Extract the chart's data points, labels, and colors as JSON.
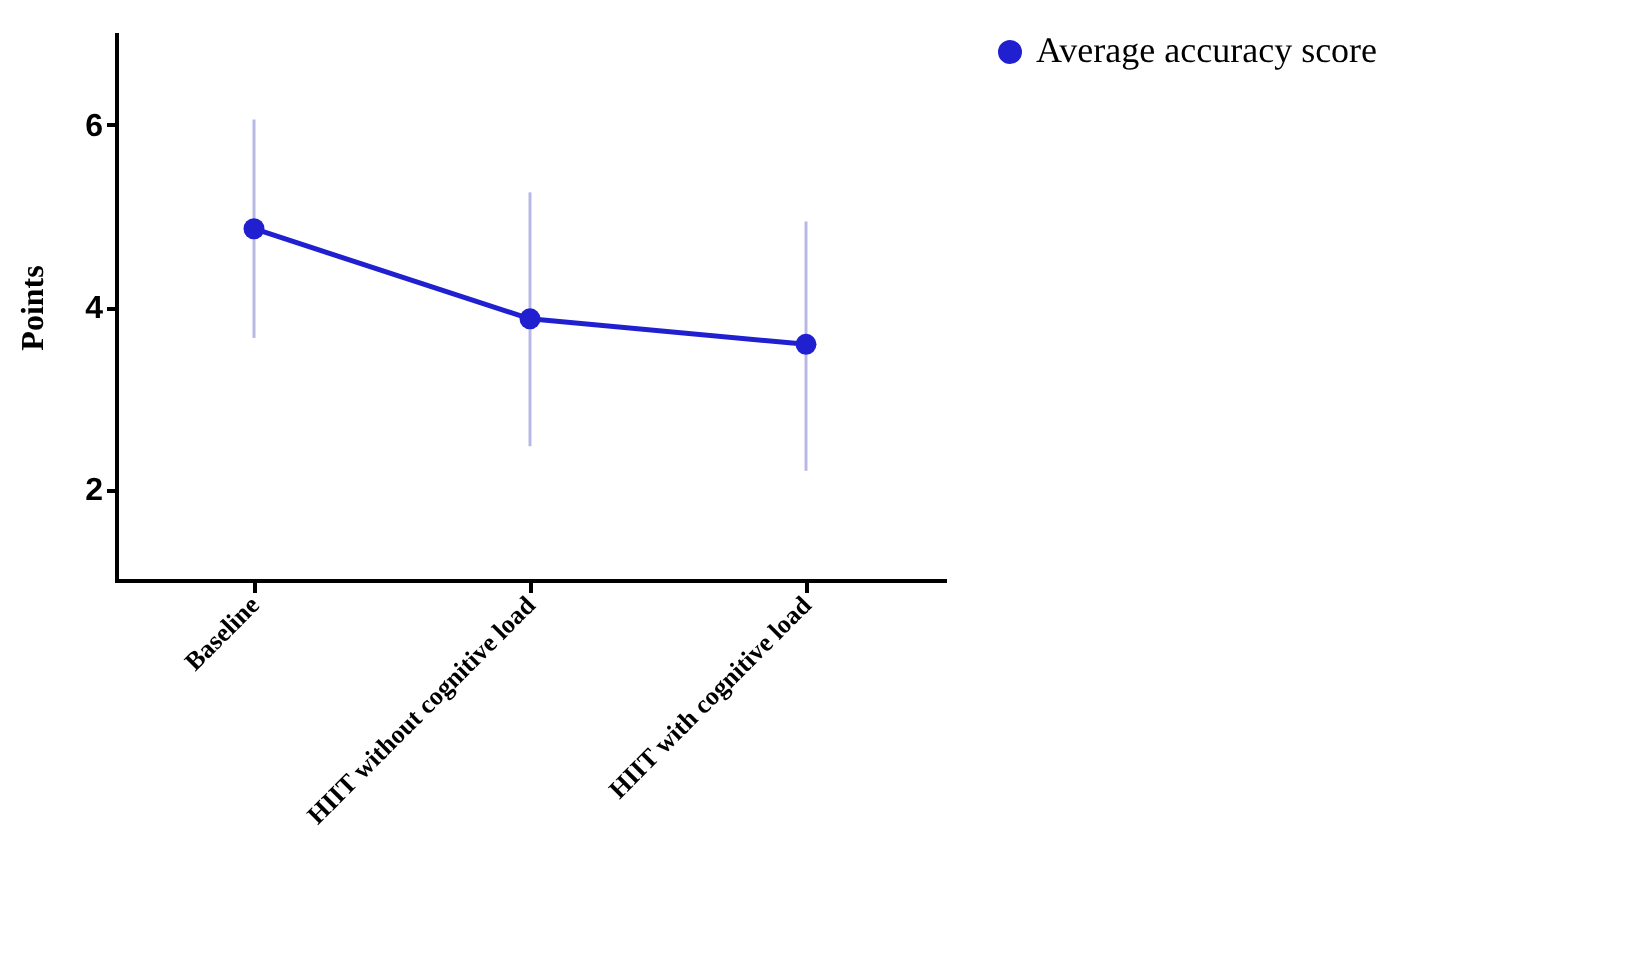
{
  "chart_data": {
    "type": "line",
    "ylabel": "Points",
    "categories": [
      "Baseline",
      "HIIT without cognitive load",
      "HIIT with cognitive load"
    ],
    "series": [
      {
        "name": "Average accuracy score",
        "color": "#2020d0",
        "values": [
          4.86,
          3.87,
          3.59
        ],
        "errors": [
          [
            3.66,
            6.06
          ],
          [
            2.47,
            5.26
          ],
          [
            2.2,
            4.94
          ]
        ]
      }
    ],
    "ylim": [
      1,
      7
    ],
    "yticks": [
      2,
      4,
      6
    ],
    "grid": false,
    "legend": "right",
    "marker": "circle",
    "line_style": "solid"
  }
}
